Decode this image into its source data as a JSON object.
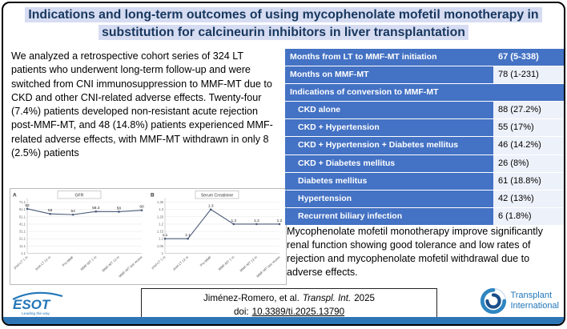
{
  "title": "Indications and long-term outcomes of using mycophenolate mofetil monotherapy in substitution for calcineurin inhibitors in liver transplantation",
  "summary": "We analyzed a retrospective cohort series of 324 LT patients who underwent long-term follow-up and were switched from CNI immunosuppression to MMF-MT due to CKD and other CNI-related adverse effects. Twenty-four (7.4%) patients developed non-resistant acute rejection post-MMF-MT, and 48 (14.8%) patients experienced MMF-related adverse effects, with MMF-MT withdrawn in only 8 (2.5%) patients",
  "table": {
    "rows": [
      {
        "label": "Months from LT to MMF-MT initiation",
        "value": "67 (5-338)"
      },
      {
        "label": "Months on MMF-MT",
        "value": "78 (1-231)"
      },
      {
        "label": "Indications of conversion to MMF-MT",
        "value": ""
      },
      {
        "label": "CKD alone",
        "value": "88 (27.2%)"
      },
      {
        "label": "CKD + Hypertension",
        "value": "55 (17%)"
      },
      {
        "label": "CKD + Hypertension + Diabetes mellitus",
        "value": "46 (14.2%)"
      },
      {
        "label": "CKD + Diabetes mellitus",
        "value": "26 (8%)"
      },
      {
        "label": "Diabetes mellitus",
        "value": "61 (18.8%)"
      },
      {
        "label": "Hypertension",
        "value": "42 (13%)"
      },
      {
        "label": "Recurrent biliary infection",
        "value": "6 (1.8%)"
      }
    ]
  },
  "conclusion": "Mycophenolate mofetil monotherapy improve significantly renal function showing good tolerance and low rates of rejection and mycophenolate mofetil withdrawal due to adverse effects.",
  "citation": {
    "authors": "Jiménez-Romero, et al.",
    "journal": "Transpl. Int.",
    "year": "2025",
    "doi_label": "doi:",
    "doi": "10.3389/ti.2025.13790"
  },
  "logos": {
    "esot": "ESOT",
    "esot_tagline1": "Leading the way",
    "esot_tagline2": "in transplantation",
    "ti_line1": "Transplant",
    "ti_line2": "International"
  },
  "colors": {
    "table_blue": "#4472c4",
    "title_highlight": "#d6dcf2",
    "title_text": "#17375e",
    "bottom_bar": "#2e75b6",
    "logo_blue": "#2176b9"
  },
  "chart_data": [
    {
      "type": "line",
      "panel": "A",
      "title": "GFR",
      "categories": [
        "post-LT 1 m",
        "post-LT 12 m",
        "Pre-MMF",
        "MMF-MT 1 m",
        "MMF-MT 12 m",
        "MMF-MT last review"
      ],
      "values": [
        62,
        55,
        54,
        58.3,
        58,
        60
      ],
      "ylim": [
        1.1,
        71.1
      ],
      "yticks": [
        71.1,
        61.1,
        51.1,
        41.1,
        31.1,
        21.1,
        11.1,
        1.1
      ],
      "xlabel": "",
      "ylabel": "",
      "legend": false,
      "grid": true
    },
    {
      "type": "line",
      "panel": "B",
      "title": "Serum Creatinine",
      "categories": [
        "post-LT 1 m",
        "post-LT 12 m",
        "Pre-MMF",
        "MMF-MT 1 m",
        "MMF-MT 12 m",
        "MMF-MT last review"
      ],
      "values": [
        1.1,
        1.1,
        1.3,
        1.2,
        1.2,
        1.2
      ],
      "ylim": [
        1,
        1.35
      ],
      "yticks": [
        1.35,
        1.3,
        1.25,
        1.2,
        1.15,
        1.1,
        1.05,
        1
      ],
      "xlabel": "",
      "ylabel": "",
      "legend": false,
      "grid": true
    }
  ]
}
